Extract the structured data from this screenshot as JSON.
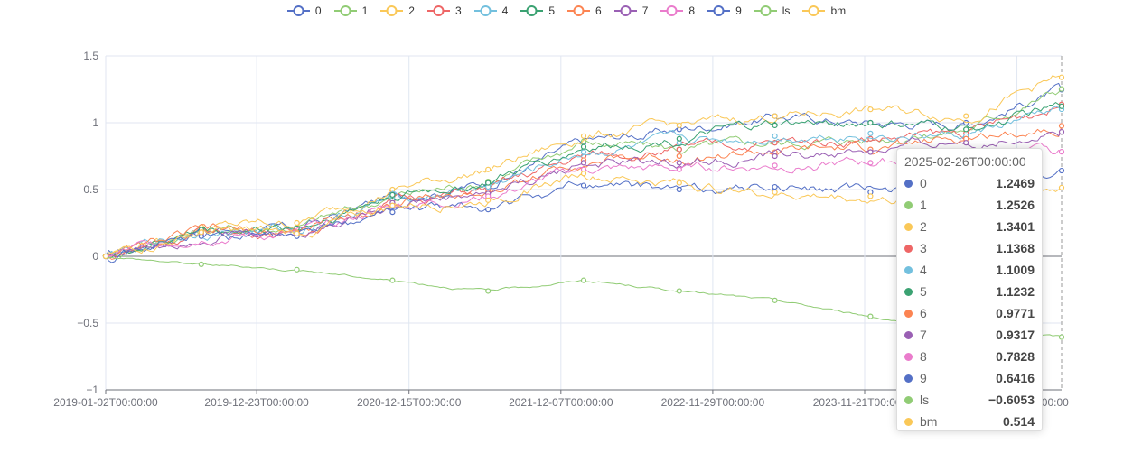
{
  "chart_data": {
    "type": "line",
    "x_start": "2019-01-02T00:00:00",
    "x_end": "2025-02-26T00:00:00",
    "x_tick_labels": [
      "2019-01-02T00:00:00",
      "2019-12-23T00:00:00",
      "2020-12-15T00:00:00",
      "2021-12-07T00:00:00",
      "2022-11-29T00:00:00",
      "2023-11-21T00:00:00",
      "2024-11-13T00:00:00"
    ],
    "y_ticks": [
      -1,
      -0.5,
      0,
      0.5,
      1,
      1.5
    ],
    "y_tick_labels": [
      "−1",
      "−0.5",
      "0",
      "0.5",
      "1",
      "1.5"
    ],
    "ylim": [
      -1,
      1.5
    ],
    "series": [
      {
        "name": "0",
        "color": "#5470c6",
        "values": [
          0,
          0.2,
          0.2,
          0.45,
          0.55,
          0.85,
          0.95,
          1.05,
          1.0,
          1.0,
          1.2469
        ]
      },
      {
        "name": "1",
        "color": "#91cc75",
        "values": [
          0,
          0.2,
          0.22,
          0.45,
          0.56,
          0.86,
          0.8,
          0.85,
          0.88,
          0.95,
          1.2526
        ]
      },
      {
        "name": "2",
        "color": "#fac858",
        "values": [
          0,
          0.22,
          0.25,
          0.5,
          0.65,
          0.9,
          0.98,
          1.05,
          1.1,
          1.05,
          1.3401
        ]
      },
      {
        "name": "3",
        "color": "#ee6666",
        "values": [
          0,
          0.18,
          0.18,
          0.42,
          0.5,
          0.75,
          0.8,
          0.85,
          0.88,
          0.92,
          1.1368
        ]
      },
      {
        "name": "4",
        "color": "#73c0de",
        "values": [
          0,
          0.19,
          0.2,
          0.43,
          0.52,
          0.78,
          0.85,
          0.9,
          0.92,
          0.9,
          1.1009
        ]
      },
      {
        "name": "5",
        "color": "#3ba272",
        "values": [
          0,
          0.2,
          0.21,
          0.46,
          0.55,
          0.82,
          0.88,
          0.98,
          1.0,
          0.95,
          1.1232
        ]
      },
      {
        "name": "6",
        "color": "#fc8452",
        "values": [
          0,
          0.18,
          0.18,
          0.4,
          0.48,
          0.72,
          0.75,
          0.78,
          0.8,
          0.88,
          0.9771
        ]
      },
      {
        "name": "7",
        "color": "#9a60b4",
        "values": [
          0,
          0.17,
          0.17,
          0.4,
          0.47,
          0.7,
          0.7,
          0.75,
          0.78,
          0.85,
          0.9317
        ]
      },
      {
        "name": "8",
        "color": "#ea7ccc",
        "values": [
          0,
          0.16,
          0.16,
          0.38,
          0.45,
          0.65,
          0.65,
          0.68,
          0.7,
          0.75,
          0.7828
        ]
      },
      {
        "name": "9",
        "color": "#5470c6",
        "values": [
          0,
          0.15,
          0.15,
          0.33,
          0.35,
          0.53,
          0.5,
          0.52,
          0.48,
          0.5,
          0.6416
        ]
      },
      {
        "name": "ls",
        "color": "#91cc75",
        "values": [
          0,
          -0.06,
          -0.1,
          -0.18,
          -0.26,
          -0.18,
          -0.26,
          -0.33,
          -0.45,
          -0.55,
          -0.6053
        ]
      },
      {
        "name": "bm",
        "color": "#fac858",
        "values": [
          0,
          0.18,
          0.17,
          0.38,
          0.42,
          0.62,
          0.55,
          0.48,
          0.45,
          0.4,
          0.514
        ]
      }
    ],
    "legend_position": "top-center",
    "grid": true
  },
  "tooltip": {
    "title": "2025-02-26T00:00:00",
    "rows": [
      {
        "name": "0",
        "value": "1.2469"
      },
      {
        "name": "1",
        "value": "1.2526"
      },
      {
        "name": "2",
        "value": "1.3401"
      },
      {
        "name": "3",
        "value": "1.1368"
      },
      {
        "name": "4",
        "value": "1.1009"
      },
      {
        "name": "5",
        "value": "1.1232"
      },
      {
        "name": "6",
        "value": "0.9771"
      },
      {
        "name": "7",
        "value": "0.9317"
      },
      {
        "name": "8",
        "value": "0.7828"
      },
      {
        "name": "9",
        "value": "0.6416"
      },
      {
        "name": "ls",
        "value": "−0.6053"
      },
      {
        "name": "bm",
        "value": "0.514"
      }
    ]
  }
}
